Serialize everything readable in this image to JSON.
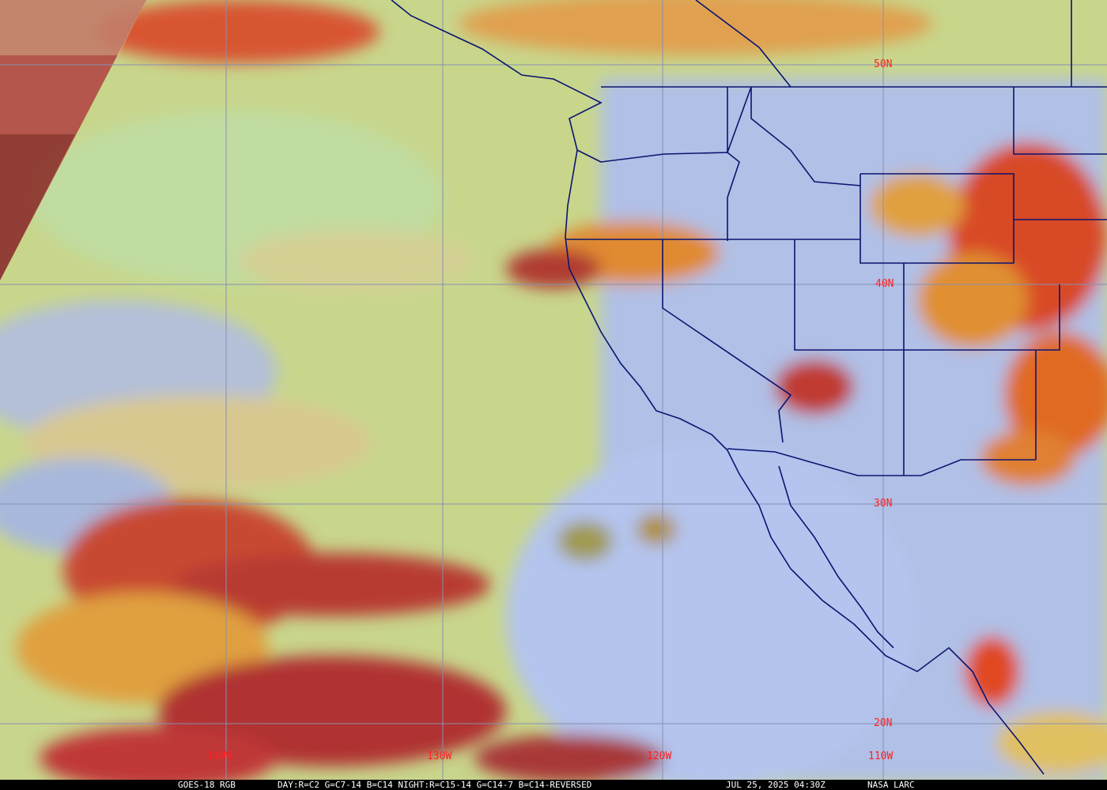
{
  "map": {
    "title": "GOES-18 RGB",
    "recipe": "DAY:R=C2 G=C7-14 B=C14 NIGHT:R=C15-14 G=C14-7 B=C14-REVERSED",
    "timestamp": "JUL 25, 2025 04:30Z",
    "credit": "NASA LARC",
    "lat_labels": [
      "50N",
      "40N",
      "30N",
      "20N"
    ],
    "lon_labels": [
      "140W",
      "130W",
      "120W",
      "110W"
    ],
    "colors": {
      "grid": "#8890b0",
      "borders": "#0a1470",
      "labels": "#ff2020",
      "ocean_clear": "#c4d48a",
      "land_clear": "#aabcec",
      "cloud_high": "#d83a20",
      "cloud_mid": "#e89030"
    }
  }
}
